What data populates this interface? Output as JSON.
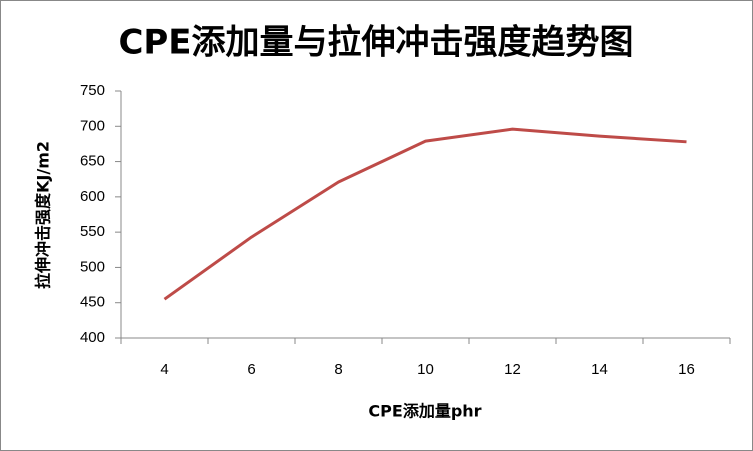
{
  "chart_data": {
    "type": "line",
    "title": "CPE添加量与拉伸冲击强度趋势图",
    "x_label": "CPE添加量phr",
    "y_label": "拉伸冲击强度KJ/m2",
    "categories": [
      "4",
      "6",
      "8",
      "10",
      "12",
      "14",
      "16"
    ],
    "values": [
      455,
      543,
      621,
      679,
      696,
      686,
      678
    ],
    "color": "#be4b48",
    "ylim": [
      400,
      750
    ],
    "yticks": [
      400,
      450,
      500,
      550,
      600,
      650,
      700,
      750
    ],
    "grid": false
  }
}
